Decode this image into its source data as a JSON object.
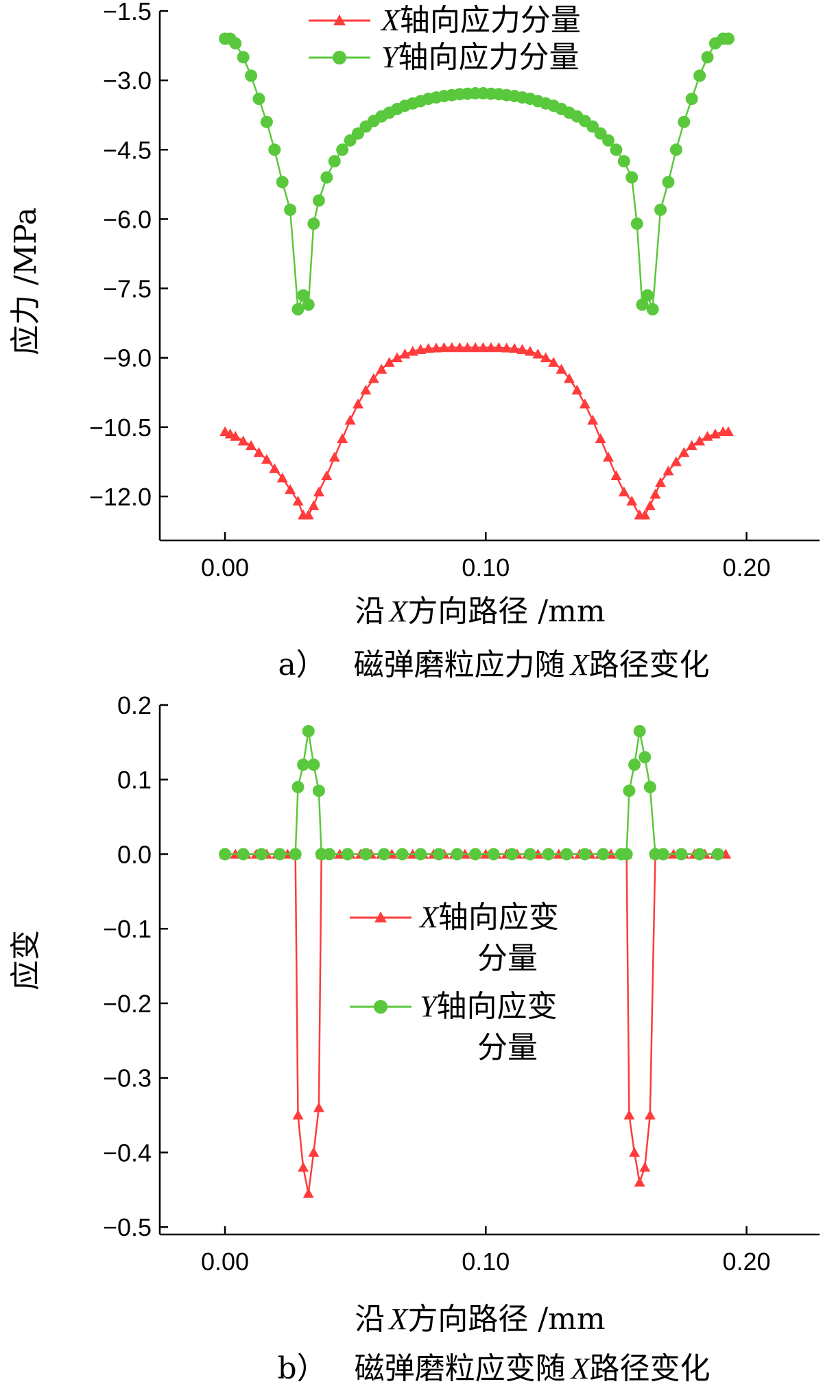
{
  "colors": {
    "x_series": "#ff3b3b",
    "y_series": "#5ac83c",
    "axis": "#000000"
  },
  "chart_data": [
    {
      "type": "line",
      "caption_label": "a）",
      "caption_text": "磁弹磨粒应力随",
      "caption_var": "X",
      "caption_suffix": "路径变化",
      "xlabel_prefix": "沿",
      "xlabel_var": "X",
      "xlabel_suffix": "方向路径 /mm",
      "ylabel": "应力 /MPa",
      "xlim": [
        -0.025,
        0.228
      ],
      "ylim": [
        -12.95,
        -1.5
      ],
      "xticks": [
        0.0,
        0.1,
        0.2
      ],
      "xtick_labels": [
        "0.00",
        "0.10",
        "0.20"
      ],
      "yticks": [
        -1.5,
        -3.0,
        -4.5,
        -6.0,
        -7.5,
        -9.0,
        -10.5,
        -12.0
      ],
      "ytick_labels": [
        "−1.5",
        "−3.0",
        "−4.5",
        "−6.0",
        "−7.5",
        "−9.0",
        "−10.5",
        "−12.0"
      ],
      "legend_position": "top-center",
      "grid": false,
      "series": [
        {
          "name": "X轴向应力分量",
          "legend_var": "X",
          "legend_text": "轴向应力分量",
          "marker": "triangle",
          "x": [
            0.0,
            0.002,
            0.004,
            0.007,
            0.01,
            0.013,
            0.016,
            0.019,
            0.022,
            0.025,
            0.028,
            0.03,
            0.032,
            0.034,
            0.036,
            0.039,
            0.042,
            0.045,
            0.048,
            0.051,
            0.054,
            0.057,
            0.06,
            0.063,
            0.066,
            0.069,
            0.072,
            0.075,
            0.078,
            0.081,
            0.084,
            0.087,
            0.09,
            0.093,
            0.096,
            0.099,
            0.102,
            0.105,
            0.108,
            0.111,
            0.114,
            0.117,
            0.12,
            0.123,
            0.126,
            0.129,
            0.132,
            0.135,
            0.138,
            0.141,
            0.144,
            0.147,
            0.15,
            0.153,
            0.156,
            0.159,
            0.161,
            0.163,
            0.165,
            0.167,
            0.17,
            0.173,
            0.176,
            0.179,
            0.182,
            0.185,
            0.188,
            0.191,
            0.193
          ],
          "y": [
            -10.6,
            -10.65,
            -10.7,
            -10.8,
            -10.9,
            -11.05,
            -11.2,
            -11.4,
            -11.6,
            -11.85,
            -12.1,
            -12.4,
            -12.4,
            -12.2,
            -11.9,
            -11.55,
            -11.15,
            -10.75,
            -10.35,
            -10.0,
            -9.7,
            -9.45,
            -9.25,
            -9.1,
            -9.0,
            -8.92,
            -8.86,
            -8.82,
            -8.8,
            -8.79,
            -8.78,
            -8.78,
            -8.78,
            -8.78,
            -8.78,
            -8.78,
            -8.78,
            -8.78,
            -8.79,
            -8.8,
            -8.82,
            -8.86,
            -8.92,
            -9.0,
            -9.1,
            -9.25,
            -9.45,
            -9.7,
            -10.0,
            -10.35,
            -10.75,
            -11.15,
            -11.55,
            -11.9,
            -12.1,
            -12.4,
            -12.4,
            -12.2,
            -11.95,
            -11.7,
            -11.45,
            -11.25,
            -11.05,
            -10.9,
            -10.8,
            -10.7,
            -10.65,
            -10.6,
            -10.6
          ]
        },
        {
          "name": "Y轴向应力分量",
          "legend_var": "Y",
          "legend_text": "轴向应力分量",
          "marker": "circle",
          "x": [
            0.0,
            0.002,
            0.004,
            0.007,
            0.01,
            0.013,
            0.016,
            0.019,
            0.022,
            0.025,
            0.028,
            0.03,
            0.032,
            0.034,
            0.036,
            0.039,
            0.042,
            0.045,
            0.048,
            0.051,
            0.054,
            0.057,
            0.06,
            0.063,
            0.066,
            0.069,
            0.072,
            0.075,
            0.078,
            0.081,
            0.084,
            0.087,
            0.09,
            0.093,
            0.096,
            0.099,
            0.102,
            0.105,
            0.108,
            0.111,
            0.114,
            0.117,
            0.12,
            0.123,
            0.126,
            0.129,
            0.132,
            0.135,
            0.138,
            0.141,
            0.144,
            0.147,
            0.15,
            0.153,
            0.156,
            0.158,
            0.16,
            0.162,
            0.164,
            0.167,
            0.17,
            0.173,
            0.176,
            0.179,
            0.182,
            0.185,
            0.188,
            0.191,
            0.193
          ],
          "y": [
            -2.1,
            -2.1,
            -2.2,
            -2.5,
            -2.9,
            -3.4,
            -3.9,
            -4.5,
            -5.2,
            -5.8,
            -7.95,
            -7.65,
            -7.85,
            -6.1,
            -5.6,
            -5.1,
            -4.75,
            -4.5,
            -4.3,
            -4.15,
            -4.0,
            -3.88,
            -3.78,
            -3.7,
            -3.62,
            -3.55,
            -3.5,
            -3.45,
            -3.4,
            -3.37,
            -3.34,
            -3.32,
            -3.3,
            -3.29,
            -3.28,
            -3.28,
            -3.29,
            -3.3,
            -3.32,
            -3.34,
            -3.37,
            -3.4,
            -3.45,
            -3.5,
            -3.55,
            -3.62,
            -3.7,
            -3.78,
            -3.88,
            -4.0,
            -4.15,
            -4.3,
            -4.5,
            -4.75,
            -5.1,
            -6.1,
            -7.85,
            -7.65,
            -7.95,
            -5.8,
            -5.2,
            -4.5,
            -3.9,
            -3.4,
            -2.9,
            -2.5,
            -2.2,
            -2.1,
            -2.1
          ]
        }
      ]
    },
    {
      "type": "line",
      "caption_label": "b）",
      "caption_text": "磁弹磨粒应变随",
      "caption_var": "X",
      "caption_suffix": "路径变化",
      "xlabel_prefix": "沿",
      "xlabel_var": "X",
      "xlabel_suffix": "方向路径 /mm",
      "ylabel": "应变",
      "xlim": [
        -0.025,
        0.228
      ],
      "ylim": [
        -0.51,
        0.2
      ],
      "xticks": [
        0.0,
        0.1,
        0.2
      ],
      "xtick_labels": [
        "0.00",
        "0.10",
        "0.20"
      ],
      "yticks": [
        0.2,
        0.1,
        0.0,
        -0.1,
        -0.2,
        -0.3,
        -0.4,
        -0.5
      ],
      "ytick_labels": [
        "0.2",
        "0.1",
        "0.0",
        "−0.1",
        "−0.2",
        "−0.3",
        "−0.4",
        "−0.5"
      ],
      "legend_position": "center",
      "grid": false,
      "series": [
        {
          "name": "X轴向应变分量",
          "legend_var": "X",
          "legend_text_line1": "轴向应变",
          "legend_text_line2": "分量",
          "marker": "triangle",
          "x": [
            0.0,
            0.004,
            0.008,
            0.012,
            0.016,
            0.02,
            0.024,
            0.027,
            0.028,
            0.03,
            0.032,
            0.034,
            0.036,
            0.037,
            0.04,
            0.044,
            0.048,
            0.052,
            0.056,
            0.06,
            0.064,
            0.068,
            0.072,
            0.076,
            0.08,
            0.084,
            0.088,
            0.092,
            0.096,
            0.1,
            0.104,
            0.108,
            0.112,
            0.116,
            0.12,
            0.124,
            0.128,
            0.132,
            0.136,
            0.14,
            0.144,
            0.148,
            0.152,
            0.154,
            0.155,
            0.157,
            0.159,
            0.161,
            0.163,
            0.165,
            0.168,
            0.172,
            0.176,
            0.18,
            0.184,
            0.188,
            0.192
          ],
          "y": [
            0.0,
            0.0,
            0.0,
            0.0,
            0.0,
            0.0,
            0.0,
            0.0,
            -0.35,
            -0.42,
            -0.455,
            -0.4,
            -0.34,
            0.0,
            0.0,
            0.0,
            0.0,
            0.0,
            0.0,
            0.0,
            0.0,
            0.0,
            0.0,
            0.0,
            0.0,
            0.0,
            0.0,
            0.0,
            0.0,
            0.0,
            0.0,
            0.0,
            0.0,
            0.0,
            0.0,
            0.0,
            0.0,
            0.0,
            0.0,
            0.0,
            0.0,
            0.0,
            0.0,
            0.0,
            -0.35,
            -0.4,
            -0.44,
            -0.42,
            -0.35,
            0.0,
            0.0,
            0.0,
            0.0,
            0.0,
            0.0,
            0.0,
            0.0
          ]
        },
        {
          "name": "Y轴向应变分量",
          "legend_var": "Y",
          "legend_text_line1": "轴向应变",
          "legend_text_line2": "分量",
          "marker": "circle",
          "x": [
            0.0,
            0.007,
            0.014,
            0.021,
            0.027,
            0.028,
            0.03,
            0.032,
            0.034,
            0.036,
            0.037,
            0.04,
            0.047,
            0.054,
            0.061,
            0.068,
            0.075,
            0.082,
            0.089,
            0.096,
            0.103,
            0.11,
            0.117,
            0.124,
            0.131,
            0.138,
            0.145,
            0.152,
            0.154,
            0.155,
            0.157,
            0.159,
            0.161,
            0.163,
            0.165,
            0.168,
            0.175,
            0.182,
            0.189
          ],
          "y": [
            0.0,
            0.0,
            0.0,
            0.0,
            0.0,
            0.09,
            0.12,
            0.165,
            0.12,
            0.085,
            0.0,
            0.0,
            0.0,
            0.0,
            0.0,
            0.0,
            0.0,
            0.0,
            0.0,
            0.0,
            0.0,
            0.0,
            0.0,
            0.0,
            0.0,
            0.0,
            0.0,
            0.0,
            0.0,
            0.085,
            0.12,
            0.165,
            0.13,
            0.09,
            0.0,
            0.0,
            0.0,
            0.0,
            0.0
          ]
        }
      ]
    }
  ]
}
